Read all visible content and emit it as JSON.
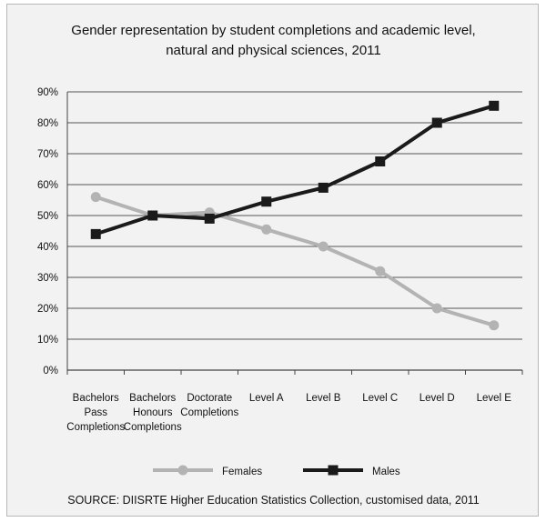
{
  "chart_data": {
    "type": "line",
    "title_lines": [
      "Gender representation by student completions and academic level,",
      "natural and physical sciences, 2011"
    ],
    "categories": [
      [
        "Bachelors",
        "Pass",
        "Completions"
      ],
      [
        "Bachelors",
        "Honours",
        "Completions"
      ],
      [
        "Doctorate",
        "Completions"
      ],
      [
        "Level A"
      ],
      [
        "Level B"
      ],
      [
        "Level C"
      ],
      [
        "Level D"
      ],
      [
        "Level E"
      ]
    ],
    "y_ticks": [
      "0%",
      "10%",
      "20%",
      "30%",
      "40%",
      "50%",
      "60%",
      "70%",
      "80%",
      "90%"
    ],
    "ylim": [
      0,
      90
    ],
    "grid": true,
    "series": [
      {
        "name": "Females",
        "values": [
          56,
          50,
          51,
          45.5,
          40,
          32,
          20,
          14.5
        ],
        "color": "#b3b3b3",
        "marker": "circle"
      },
      {
        "name": "Males",
        "values": [
          44,
          50,
          49,
          54.5,
          59,
          67.5,
          80,
          85.5
        ],
        "color": "#1a1a1a",
        "marker": "square"
      }
    ],
    "legend": {
      "position": "bottom",
      "items": [
        "Females",
        "Males"
      ]
    },
    "source": "SOURCE: DIISRTE Higher Education Statistics Collection, customised data, 2011"
  }
}
